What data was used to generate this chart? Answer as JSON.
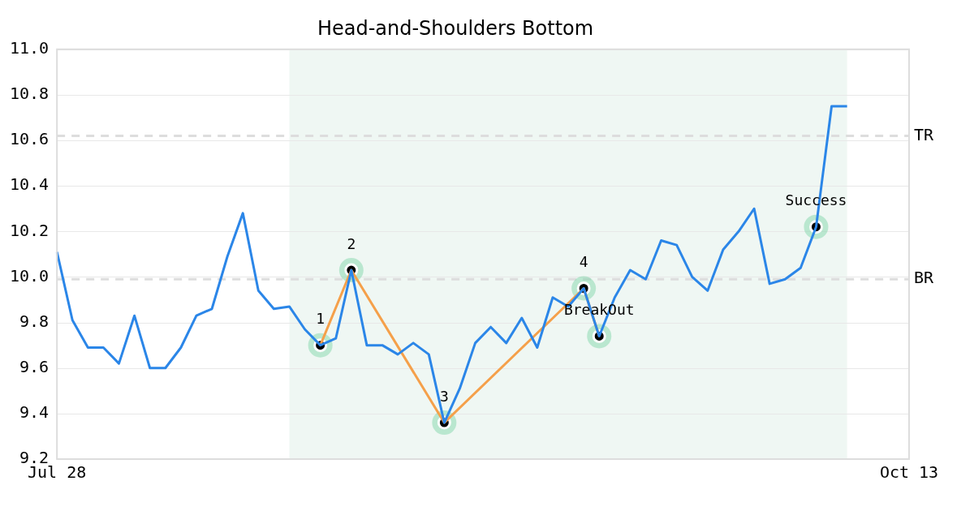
{
  "chart_data": {
    "type": "line",
    "title": "Head-and-Shoulders Bottom",
    "categories": [
      "Jul 28",
      null,
      null,
      null,
      null,
      null,
      null,
      null,
      null,
      null,
      null,
      null,
      null,
      null,
      null,
      null,
      null,
      null,
      null,
      null,
      null,
      null,
      null,
      null,
      null,
      null,
      null,
      null,
      null,
      null,
      null,
      null,
      null,
      null,
      null,
      null,
      null,
      null,
      null,
      null,
      null,
      null,
      null,
      null,
      null,
      null,
      null,
      null,
      null,
      null,
      null,
      null,
      null,
      null,
      null,
      "Oct 13"
    ],
    "series": [
      {
        "color": "#2b86e8",
        "values": [
          10.11,
          9.81,
          9.69,
          9.69,
          9.62,
          9.83,
          9.6,
          9.6,
          9.69,
          9.83,
          9.86,
          10.09,
          10.28,
          9.94,
          9.86,
          9.87,
          9.77,
          9.7,
          9.73,
          10.03,
          9.7,
          9.7,
          9.66,
          9.71,
          9.66,
          9.36,
          9.51,
          9.71,
          9.78,
          9.71,
          9.82,
          9.69,
          9.91,
          9.87,
          9.95,
          9.74,
          9.91,
          10.03,
          9.99,
          10.16,
          10.14,
          10.0,
          9.94,
          10.12,
          10.2,
          10.3,
          9.97,
          9.99,
          10.04,
          10.22,
          10.75,
          10.75,
          null,
          null,
          null,
          null
        ]
      },
      {
        "color": "#f5a04a",
        "values": [
          null,
          null,
          null,
          null,
          null,
          null,
          null,
          null,
          null,
          null,
          null,
          null,
          null,
          null,
          null,
          null,
          null,
          9.7,
          null,
          10.03,
          null,
          null,
          null,
          null,
          null,
          9.36,
          null,
          null,
          null,
          null,
          null,
          null,
          null,
          null,
          9.95,
          9.74,
          null,
          null,
          null,
          null,
          null,
          null,
          null,
          null,
          null,
          null,
          null,
          null,
          null,
          null,
          null,
          null,
          null,
          null,
          null,
          null
        ]
      },
      {
        "type": "scatter",
        "color": "#000000",
        "marker": "circle",
        "values": [
          null,
          null,
          null,
          null,
          null,
          null,
          null,
          null,
          null,
          null,
          null,
          null,
          null,
          null,
          null,
          null,
          null,
          9.7,
          null,
          10.03,
          null,
          null,
          null,
          null,
          null,
          9.36,
          null,
          null,
          null,
          null,
          null,
          null,
          null,
          null,
          9.95,
          9.74,
          null,
          null,
          null,
          null,
          null,
          null,
          null,
          null,
          null,
          null,
          null,
          null,
          null,
          10.22,
          null,
          null,
          null,
          null,
          null,
          null
        ]
      }
    ],
    "ylim": [
      9.2,
      11.0
    ],
    "yticks": [
      {
        "value": 9.2,
        "label": "9.2"
      },
      {
        "value": 9.4,
        "label": "9.4"
      },
      {
        "value": 9.6,
        "label": "9.6"
      },
      {
        "value": 9.8,
        "label": "9.8"
      },
      {
        "value": 10.0,
        "label": "10.0"
      },
      {
        "value": 10.2,
        "label": "10.2"
      },
      {
        "value": 10.4,
        "label": "10.4"
      },
      {
        "value": 10.6,
        "label": "10.6"
      },
      {
        "value": 10.8,
        "label": "10.8"
      },
      {
        "value": 11.0,
        "label": "11.0"
      }
    ],
    "grid": "y",
    "line_style": "solid",
    "annotations": [
      {
        "text": "1",
        "y": 9.7
      },
      {
        "text": "2",
        "y": 10.03
      },
      {
        "text": "3",
        "y": 9.36
      },
      {
        "text": "4",
        "y": 9.95
      },
      {
        "text": "BreakOut",
        "y": 9.74
      },
      {
        "text": "Success",
        "y": 10.22
      }
    ],
    "ref_lines": [
      {
        "axis": "y",
        "value": 10.62,
        "label": "TR",
        "color": "#dddddd",
        "line_style": "dashed"
      },
      {
        "axis": "y",
        "value": 9.99,
        "label": "BR",
        "color": "#dddddd",
        "line_style": "dashed"
      }
    ]
  }
}
